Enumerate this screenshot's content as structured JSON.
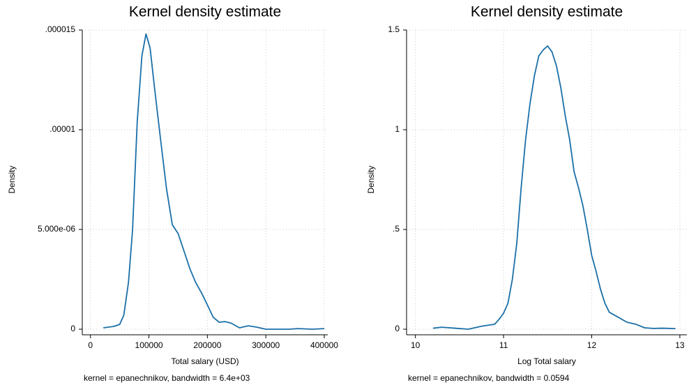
{
  "chart_data": [
    {
      "type": "line",
      "title": "Kernel density estimate",
      "xlabel": "Total salary (USD)",
      "ylabel": "Density",
      "note": "kernel = epanechnikov, bandwidth =  6.4e+03",
      "x": [
        22000,
        40000,
        50000,
        57000,
        65000,
        72000,
        80000,
        88000,
        95000,
        102000,
        110000,
        120000,
        130000,
        140000,
        150000,
        160000,
        170000,
        180000,
        190000,
        200000,
        210000,
        220000,
        230000,
        240000,
        255000,
        270000,
        285000,
        300000,
        340000,
        355000,
        380000,
        400000
      ],
      "series": [
        {
          "name": "Density",
          "color": "#1a6fa8",
          "values": [
            7e-08,
            1.4e-07,
            2.4e-07,
            7e-07,
            2.34e-06,
            4.97e-06,
            1.04e-05,
            1.37e-05,
            1.48e-05,
            1.41e-05,
            1.2e-05,
            9.5e-06,
            7.06e-06,
            5.24e-06,
            4.79e-06,
            3.92e-06,
            3.04e-06,
            2.34e-06,
            1.82e-06,
            1.22e-06,
            6e-07,
            3.5e-07,
            3.8e-07,
            3.1e-07,
            7e-08,
            1.7e-07,
            1e-07,
            0,
            0,
            3e-08,
            0,
            3e-08
          ]
        }
      ],
      "xlim": [
        -14000,
        406000
      ],
      "ylim": [
        0,
        1.5e-05
      ],
      "xticks": [
        0,
        100000,
        200000,
        300000,
        400000
      ],
      "yticks": [
        0,
        {
          "value": 5e-06,
          "label": "5.000e-06"
        },
        {
          "value": 1e-05,
          "label": ".00001"
        },
        {
          "value": 1.5e-05,
          "label": ".000015"
        }
      ],
      "grid": true
    },
    {
      "type": "line",
      "title": "Kernel density estimate",
      "xlabel": "Log Total salary",
      "ylabel": "Density",
      "note": "kernel = epanechnikov, bandwidth = 0.0594",
      "x": [
        10.2,
        10.3,
        10.45,
        10.6,
        10.75,
        10.9,
        10.95,
        11.0,
        11.05,
        11.1,
        11.15,
        11.2,
        11.25,
        11.3,
        11.35,
        11.4,
        11.45,
        11.5,
        11.55,
        11.6,
        11.65,
        11.7,
        11.75,
        11.8,
        11.85,
        11.9,
        11.95,
        12.0,
        12.05,
        12.1,
        12.15,
        12.2,
        12.3,
        12.4,
        12.5,
        12.6,
        12.7,
        12.8,
        12.95
      ],
      "series": [
        {
          "name": "Density",
          "color": "#1a6fa8",
          "values": [
            0.005,
            0.01,
            0.005,
            0,
            0.015,
            0.025,
            0.05,
            0.08,
            0.13,
            0.25,
            0.43,
            0.71,
            0.95,
            1.13,
            1.27,
            1.37,
            1.4,
            1.42,
            1.39,
            1.32,
            1.21,
            1.07,
            0.95,
            0.79,
            0.71,
            0.62,
            0.5,
            0.37,
            0.29,
            0.2,
            0.13,
            0.085,
            0.06,
            0.035,
            0.025,
            0.007,
            0.004,
            0.005,
            0.003
          ]
        }
      ],
      "xlim": [
        9.9,
        13.08
      ],
      "ylim": [
        0,
        1.5
      ],
      "xticks": [
        10,
        11,
        12,
        13
      ],
      "yticks": [
        0,
        {
          "value": 0.5,
          "label": ".5"
        },
        1,
        1.5
      ],
      "grid": true
    }
  ]
}
